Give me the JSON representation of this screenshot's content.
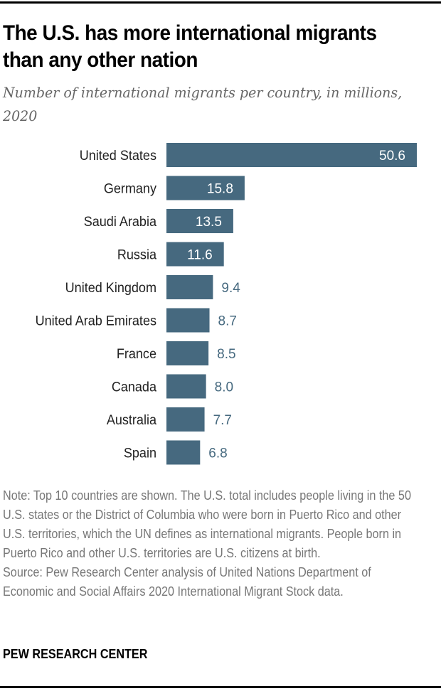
{
  "chart_data": {
    "type": "bar",
    "orientation": "horizontal",
    "title": "The U.S. has more international migrants than any other nation",
    "subtitle": "Number of international migrants per country, in millions, 2020",
    "categories": [
      "United States",
      "Germany",
      "Saudi Arabia",
      "Russia",
      "United Kingdom",
      "United Arab Emirates",
      "France",
      "Canada",
      "Australia",
      "Spain"
    ],
    "values": [
      50.6,
      15.8,
      13.5,
      11.6,
      9.4,
      8.7,
      8.5,
      8.0,
      7.7,
      6.8
    ],
    "value_labels": [
      "50.6",
      "15.8",
      "13.5",
      "11.6",
      "9.4",
      "8.7",
      "8.5",
      "8.0",
      "7.7",
      "6.8"
    ],
    "xlabel": "",
    "ylabel": "",
    "xlim": [
      0,
      50.6
    ],
    "grid": false,
    "bar_color": "#46697f",
    "label_color_inside": "#ffffff",
    "label_color_outside": "#46697f"
  },
  "notes": {
    "note": "Note: Top 10 countries are shown. The U.S. total includes people living in the 50 U.S. states or the District of Columbia who were born in Puerto Rico and other U.S. territories, which the UN defines as international migrants. People born in Puerto Rico and other U.S. territories are U.S. citizens at birth.",
    "source": "Source: Pew Research Center analysis of United Nations Department of Economic and Social Affairs 2020 International Migrant Stock data."
  },
  "brand": "PEW RESEARCH CENTER"
}
